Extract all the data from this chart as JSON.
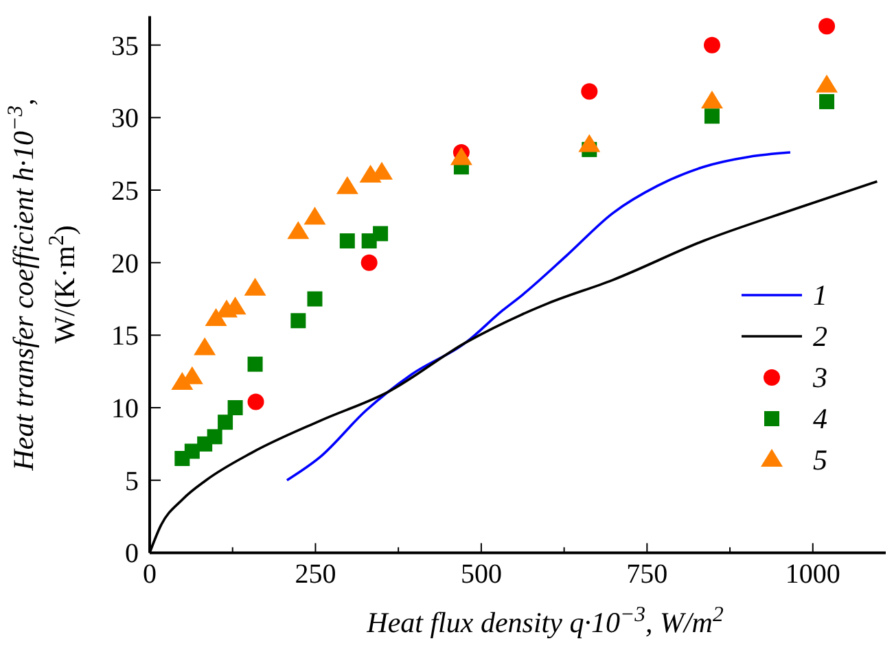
{
  "chart_data": {
    "type": "scatter",
    "xlabel": "Heat flux density  q·10$^{−3}$, W/m$^{2}$",
    "ylabel": "Heat transfer coefficient h·10$^{−3}$,\nW/(K·m$^{2}$)",
    "xlim": [
      0,
      1110
    ],
    "ylim": [
      0,
      37
    ],
    "xticks": [
      0,
      {
        "value": 125,
        "label": null
      },
      250,
      {
        "value": 375,
        "label": null
      },
      500,
      {
        "value": 625,
        "label": null
      },
      750,
      {
        "value": 875,
        "label": null
      },
      1000
    ],
    "yticks": [
      0,
      5,
      10,
      15,
      20,
      25,
      30,
      35
    ],
    "legend": "right",
    "grid": false,
    "series": [
      {
        "name": "1",
        "type": "line",
        "color": "#0000ff",
        "line_style": "solid",
        "x": [
          207,
          257,
          326,
          395,
          477,
          532,
          560,
          629,
          698,
          766,
          835,
          904,
          966
        ],
        "values": [
          5.0,
          6.6,
          9.8,
          12.3,
          14.5,
          16.7,
          17.7,
          20.5,
          23.4,
          25.3,
          26.6,
          27.3,
          27.6
        ]
      },
      {
        "name": "2",
        "type": "line",
        "color": "#000000",
        "line_style": "solid",
        "x": [
          0,
          16,
          50,
          85,
          154,
          257,
          360,
          477,
          560,
          601,
          698,
          835,
          973,
          1097
        ],
        "values": [
          0,
          1.8,
          3.7,
          5.0,
          6.9,
          9.1,
          11.1,
          14.5,
          16.4,
          17.2,
          18.8,
          21.5,
          23.7,
          25.6
        ]
      },
      {
        "name": "3",
        "marker": "circle",
        "color": "#ff0000",
        "x": [
          160,
          331,
          470,
          663,
          848,
          1021
        ],
        "values": [
          10.4,
          20.0,
          27.6,
          31.8,
          35.0,
          36.3
        ]
      },
      {
        "name": "4",
        "marker": "square",
        "color": "#008000",
        "x": [
          49,
          64,
          83,
          98,
          114,
          129,
          159,
          224,
          249,
          298,
          331,
          348,
          470,
          663,
          848,
          1021
        ],
        "values": [
          6.5,
          7.0,
          7.5,
          8.0,
          9.0,
          10.0,
          13.0,
          16.0,
          17.5,
          21.5,
          21.5,
          22.0,
          26.6,
          27.8,
          30.1,
          31.1
        ]
      },
      {
        "name": "5",
        "marker": "triangle",
        "color": "#ff8000",
        "x": [
          49,
          64,
          83,
          100,
          116,
          129,
          159,
          224,
          249,
          298,
          333,
          350,
          470,
          663,
          848,
          1021
        ],
        "values": [
          11.7,
          12.1,
          14.1,
          16.1,
          16.7,
          16.9,
          18.2,
          22.1,
          23.1,
          25.2,
          26.0,
          26.2,
          27.2,
          28.1,
          31.1,
          32.2
        ]
      }
    ]
  }
}
